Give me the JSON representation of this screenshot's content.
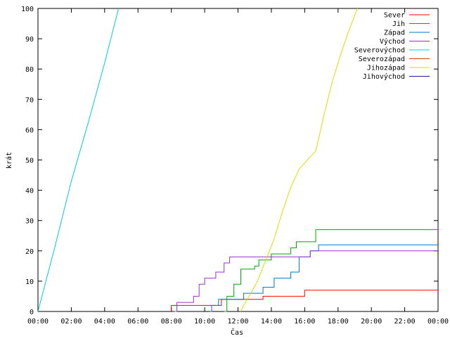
{
  "chart_data": {
    "type": "line",
    "title": "",
    "xlabel": "Čas",
    "ylabel": "krát",
    "xlim": [
      "00:00",
      "24:00"
    ],
    "ylim": [
      0,
      100
    ],
    "x_ticks": [
      "00:00",
      "02:00",
      "04:00",
      "06:00",
      "08:00",
      "10:00",
      "12:00",
      "14:00",
      "16:00",
      "18:00",
      "20:00",
      "22:00",
      "00:00"
    ],
    "y_ticks": [
      "0",
      "10",
      "20",
      "30",
      "40",
      "50",
      "60",
      "70",
      "80",
      "90",
      "100"
    ],
    "grid": false,
    "legend_position": "top-right",
    "series": [
      {
        "name": "Sever",
        "color": "#ff0000",
        "step": true,
        "points": [
          [
            "08:00",
            0
          ],
          [
            "08:00",
            2
          ],
          [
            "11:00",
            4
          ],
          [
            "13:30",
            5
          ],
          [
            "16:00",
            7
          ],
          [
            "24:00",
            7
          ]
        ]
      },
      {
        "name": "Jih",
        "color": "#00aa00",
        "step": true,
        "points": [
          [
            "11:10",
            0
          ],
          [
            "11:20",
            5
          ],
          [
            "11:45",
            9
          ],
          [
            "12:10",
            14
          ],
          [
            "13:00",
            15
          ],
          [
            "13:15",
            17
          ],
          [
            "14:00",
            19
          ],
          [
            "15:10",
            21
          ],
          [
            "15:30",
            23
          ],
          [
            "16:40",
            27
          ],
          [
            "24:00",
            27
          ]
        ]
      },
      {
        "name": "Západ",
        "color": "#0077cc",
        "step": true,
        "points": [
          [
            "10:20",
            0
          ],
          [
            "10:25",
            2
          ],
          [
            "10:50",
            4
          ],
          [
            "12:20",
            6
          ],
          [
            "13:30",
            8
          ],
          [
            "14:10",
            11
          ],
          [
            "15:10",
            13
          ],
          [
            "15:40",
            18
          ],
          [
            "16:20",
            20
          ],
          [
            "16:50",
            22
          ],
          [
            "24:00",
            22
          ]
        ]
      },
      {
        "name": "Východ",
        "color": "#9933cc",
        "step": true,
        "points": [
          [
            "08:10",
            0
          ],
          [
            "08:20",
            3
          ],
          [
            "09:20",
            5
          ],
          [
            "09:40",
            9
          ],
          [
            "10:00",
            11
          ],
          [
            "10:40",
            13
          ],
          [
            "11:10",
            16
          ],
          [
            "11:30",
            18
          ],
          [
            "16:20",
            20
          ],
          [
            "24:00",
            20
          ]
        ]
      },
      {
        "name": "Severovýchod",
        "color": "#00ccdd",
        "step": false,
        "points": [
          [
            "00:00",
            0
          ],
          [
            "01:00",
            21
          ],
          [
            "02:00",
            43
          ],
          [
            "03:00",
            62
          ],
          [
            "04:00",
            82
          ],
          [
            "04:50",
            100
          ]
        ]
      },
      {
        "name": "Severozápad",
        "color": "#cc4400",
        "step": true,
        "points": []
      },
      {
        "name": "Jihozápad",
        "color": "#dddd00",
        "step": false,
        "points": [
          [
            "12:10",
            0
          ],
          [
            "12:20",
            2
          ],
          [
            "12:40",
            5
          ],
          [
            "13:10",
            10
          ],
          [
            "13:40",
            17
          ],
          [
            "14:10",
            24
          ],
          [
            "14:40",
            33
          ],
          [
            "15:10",
            41
          ],
          [
            "15:40",
            47
          ],
          [
            "16:20",
            51
          ],
          [
            "16:40",
            53
          ],
          [
            "17:10",
            65
          ],
          [
            "17:40",
            76
          ],
          [
            "18:10",
            85
          ],
          [
            "18:40",
            93
          ],
          [
            "19:10",
            100
          ]
        ]
      },
      {
        "name": "Jihovýchod",
        "color": "#1a1aaa",
        "step": true,
        "points": []
      }
    ]
  }
}
